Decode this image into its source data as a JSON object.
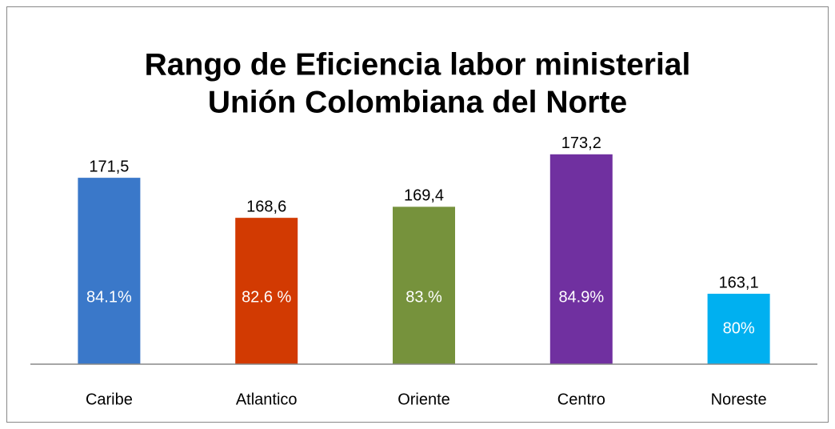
{
  "chart_data": {
    "type": "bar",
    "title": [
      "Rango de Eficiencia labor ministerial",
      "Unión Colombiana del Norte"
    ],
    "categories": [
      "Caribe",
      "Atlantico",
      "Oriente",
      "Centro",
      "Noreste"
    ],
    "values": [
      171.5,
      168.6,
      169.4,
      173.2,
      163.1
    ],
    "value_labels": [
      "171,5",
      "168,6",
      "169,4",
      "173,2",
      "163,1"
    ],
    "bar_labels": [
      "84.1%",
      "82.6 %",
      "83.%",
      "84.9%",
      "80%"
    ],
    "colors": [
      "#3a78c9",
      "#d23a02",
      "#76923c",
      "#7030a0",
      "#00b0f0"
    ],
    "ylim": [
      158,
      174
    ]
  }
}
